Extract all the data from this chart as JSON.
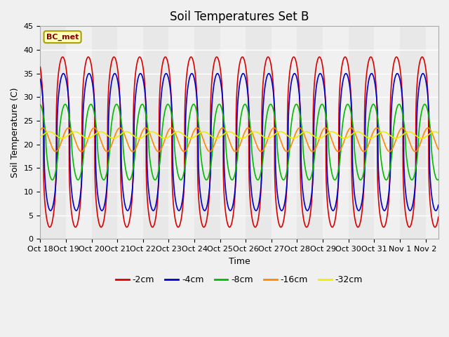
{
  "title": "Soil Temperatures Set B",
  "xlabel": "Time",
  "ylabel": "Soil Temperature (C)",
  "annotation": "BC_met",
  "xlim_days": [
    0,
    15.5
  ],
  "ylim": [
    0,
    45
  ],
  "yticks": [
    0,
    5,
    10,
    15,
    20,
    25,
    30,
    35,
    40,
    45
  ],
  "xtick_labels": [
    "Oct 18",
    "Oct 19",
    "Oct 20",
    "Oct 21",
    "Oct 22",
    "Oct 23",
    "Oct 24",
    "Oct 25",
    "Oct 26",
    "Oct 27",
    "Oct 28",
    "Oct 29",
    "Oct 30",
    "Oct 31",
    "Nov 1",
    "Nov 2"
  ],
  "series": [
    {
      "label": "-2cm",
      "color": "#dd0000",
      "mean": 20.5,
      "amplitude": 18.0,
      "phase": 0.62,
      "sharpness": 3.0,
      "amp_decay": 0.0
    },
    {
      "label": "-4cm",
      "color": "#0000cc",
      "mean": 20.5,
      "amplitude": 14.5,
      "phase": 0.65,
      "sharpness": 2.5,
      "amp_decay": 0.0
    },
    {
      "label": "-8cm",
      "color": "#00bb00",
      "mean": 20.5,
      "amplitude": 8.0,
      "phase": 0.72,
      "sharpness": 1.5,
      "amp_decay": 0.0
    },
    {
      "label": "-16cm",
      "color": "#ff8800",
      "mean": 21.0,
      "amplitude": 2.5,
      "phase": 0.85,
      "sharpness": 1.0,
      "amp_decay": 0.0
    },
    {
      "label": "-32cm",
      "color": "#eeee00",
      "mean": 22.0,
      "amplitude": 0.7,
      "phase": 0.1,
      "sharpness": 1.0,
      "amp_decay": 0.0
    }
  ],
  "background_color": "#f0f0f0",
  "plot_bg_color": "#e8e8e8",
  "grid_color": "#ffffff",
  "title_fontsize": 12,
  "label_fontsize": 9,
  "tick_fontsize": 8,
  "legend_fontsize": 9,
  "stripe_color": "#d8d8d8",
  "stripe_positions": [
    0,
    2,
    4,
    6,
    8,
    10,
    12,
    14
  ]
}
